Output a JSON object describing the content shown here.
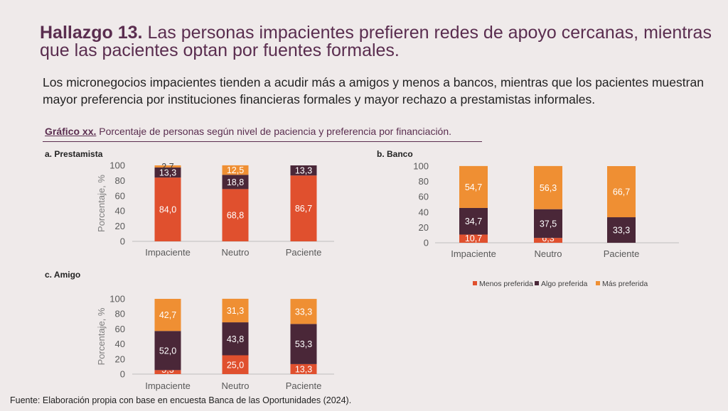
{
  "headline": {
    "bold": "Hallazgo 13.",
    "text": " Las personas impacientes prefieren redes de apoyo cercanas, mientras que las pacientes optan por fuentes formales."
  },
  "subtitle": "Los micronegocios impacientes tienden a acudir más a amigos y menos a bancos, mientras que los pacientes muestran mayor preferencia por instituciones financieras formales y mayor rechazo a prestamistas informales.",
  "caption": {
    "label": "Gráfico xx.",
    "text": " Porcentaje de personas según nivel de paciencia y preferencia por financiación."
  },
  "source": "Fuente: Elaboración propia con base en encuesta Banca de las Oportunidades (2024).",
  "colors": {
    "menos": "#e0502e",
    "algo": "#4a2738",
    "mas": "#ef8f33"
  },
  "chart_data": [
    {
      "type": "bar",
      "stacked": true,
      "title": "a. Prestamista",
      "ylabel": "Porcentaje, %",
      "categories": [
        "Impaciente",
        "Neutro",
        "Paciente"
      ],
      "ylim": [
        0,
        100
      ],
      "yticks": [
        "0",
        "20",
        "40",
        "60",
        "80",
        "100"
      ],
      "series": [
        {
          "name": "Menos preferida",
          "values": [
            84.0,
            68.8,
            86.7
          ],
          "labels": [
            "84,0",
            "68,8",
            "86,7"
          ]
        },
        {
          "name": "Algo preferida",
          "values": [
            13.3,
            18.8,
            13.3
          ],
          "labels": [
            "13,3",
            "18,8",
            "13,3"
          ]
        },
        {
          "name": "Más preferida",
          "values": [
            2.7,
            12.5,
            0
          ],
          "labels": [
            "2,7",
            "12,5",
            ""
          ]
        }
      ]
    },
    {
      "type": "bar",
      "stacked": true,
      "title": "b. Banco",
      "ylabel": "",
      "categories": [
        "Impaciente",
        "Neutro",
        "Paciente"
      ],
      "ylim": [
        0,
        100
      ],
      "yticks": [
        "0",
        "20",
        "40",
        "60",
        "80",
        "100"
      ],
      "series": [
        {
          "name": "Menos preferida",
          "values": [
            10.7,
            6.3,
            0
          ],
          "labels": [
            "10,7",
            "6,3",
            ""
          ]
        },
        {
          "name": "Algo preferida",
          "values": [
            34.7,
            37.5,
            33.3
          ],
          "labels": [
            "34,7",
            "37,5",
            "33,3"
          ]
        },
        {
          "name": "Más preferida",
          "values": [
            54.7,
            56.3,
            66.7
          ],
          "labels": [
            "54,7",
            "56,3",
            "66,7"
          ]
        }
      ],
      "legend": [
        "Menos preferida",
        "Algo preferida",
        "Más preferida"
      ],
      "legend_position": "bottom"
    },
    {
      "type": "bar",
      "stacked": true,
      "title": "c. Amigo",
      "ylabel": "Porcentaje, %",
      "categories": [
        "Impaciente",
        "Neutro",
        "Paciente"
      ],
      "ylim": [
        0,
        100
      ],
      "yticks": [
        "0",
        "20",
        "40",
        "60",
        "80",
        "100"
      ],
      "series": [
        {
          "name": "Menos preferida",
          "values": [
            5.3,
            25.0,
            13.3
          ],
          "labels": [
            "5,3",
            "25,0",
            "13,3"
          ]
        },
        {
          "name": "Algo preferida",
          "values": [
            52.0,
            43.8,
            53.3
          ],
          "labels": [
            "52,0",
            "43,8",
            "53,3"
          ]
        },
        {
          "name": "Más preferida",
          "values": [
            42.7,
            31.3,
            33.3
          ],
          "labels": [
            "42,7",
            "31,3",
            "33,3"
          ]
        }
      ]
    }
  ]
}
